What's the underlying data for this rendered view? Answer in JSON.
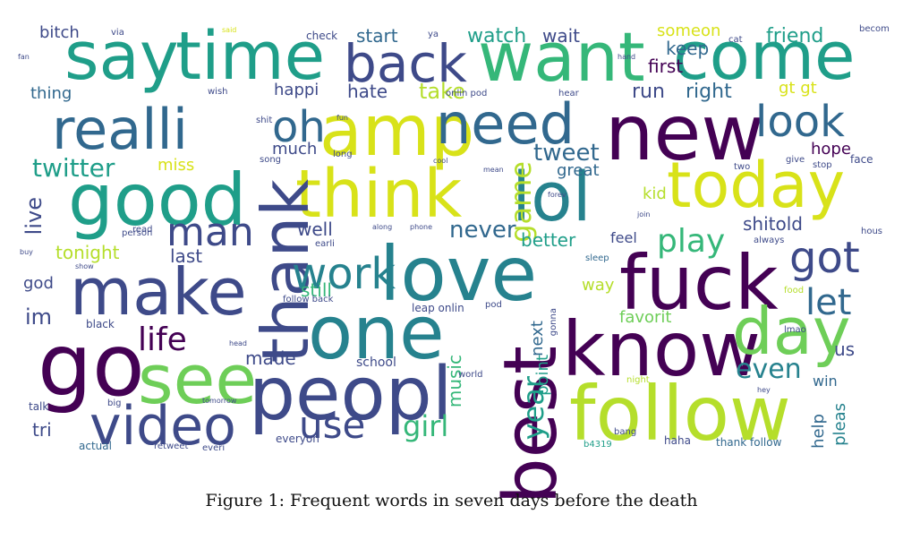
{
  "figure": {
    "caption": "Figure 1: Frequent words in seven days before the death"
  },
  "palette": {
    "purple": "#440154",
    "indigo": "#3e4a89",
    "blue": "#31688e",
    "teal": "#26828e",
    "sea": "#1f9e89",
    "green": "#35b779",
    "lime": "#6ece58",
    "yellow": "#b5de2b",
    "gold": "#d8e219"
  },
  "words": [
    {
      "text": "say",
      "color": "#1f9e89"
    },
    {
      "text": "time",
      "color": "#1f9e89"
    },
    {
      "text": "back",
      "color": "#3e4a89"
    },
    {
      "text": "want",
      "color": "#35b779"
    },
    {
      "text": "come",
      "color": "#1f9e89"
    },
    {
      "text": "realli",
      "color": "#31688e"
    },
    {
      "text": "oh",
      "color": "#31688e"
    },
    {
      "text": "amp",
      "color": "#d8e219"
    },
    {
      "text": "need",
      "color": "#31688e"
    },
    {
      "text": "new",
      "color": "#440154"
    },
    {
      "text": "look",
      "color": "#31688e"
    },
    {
      "text": "good",
      "color": "#1f9e89"
    },
    {
      "text": "think",
      "color": "#d8e219"
    },
    {
      "text": "lol",
      "color": "#26828e"
    },
    {
      "text": "today",
      "color": "#d8e219"
    },
    {
      "text": "thank",
      "color": "#3e4a89"
    },
    {
      "text": "love",
      "color": "#26828e"
    },
    {
      "text": "fuck",
      "color": "#440154"
    },
    {
      "text": "make",
      "color": "#3e4a89"
    },
    {
      "text": "one",
      "color": "#26828e"
    },
    {
      "text": "know",
      "color": "#440154"
    },
    {
      "text": "go",
      "color": "#440154"
    },
    {
      "text": "see",
      "color": "#6ece58"
    },
    {
      "text": "peopl",
      "color": "#3e4a89"
    },
    {
      "text": "best",
      "color": "#440154"
    },
    {
      "text": "day",
      "color": "#6ece58"
    },
    {
      "text": "follow",
      "color": "#b5de2b"
    },
    {
      "text": "video",
      "color": "#3e4a89"
    },
    {
      "text": "got",
      "color": "#3e4a89"
    },
    {
      "text": "work",
      "color": "#26828e"
    },
    {
      "text": "man",
      "color": "#3e4a89"
    },
    {
      "text": "life",
      "color": "#440154"
    },
    {
      "text": "use",
      "color": "#3e4a89"
    },
    {
      "text": "twitter",
      "color": "#1f9e89"
    },
    {
      "text": "play",
      "color": "#35b779"
    },
    {
      "text": "let",
      "color": "#31688e"
    },
    {
      "text": "even",
      "color": "#26828e"
    },
    {
      "text": "girl",
      "color": "#35b779"
    },
    {
      "text": "tweet",
      "color": "#31688e"
    },
    {
      "text": "game",
      "color": "#b5de2b"
    },
    {
      "text": "never",
      "color": "#31688e"
    },
    {
      "text": "year",
      "color": "#1f9e89"
    },
    {
      "text": "bitch",
      "color": "#3e4a89"
    },
    {
      "text": "start",
      "color": "#31688e"
    },
    {
      "text": "watch",
      "color": "#1f9e89"
    },
    {
      "text": "wait",
      "color": "#3e4a89"
    },
    {
      "text": "someon",
      "color": "#d8e219"
    },
    {
      "text": "friend",
      "color": "#1f9e89"
    },
    {
      "text": "keep",
      "color": "#31688e"
    },
    {
      "text": "first",
      "color": "#440154"
    },
    {
      "text": "thing",
      "color": "#31688e"
    },
    {
      "text": "happi",
      "color": "#3e4a89"
    },
    {
      "text": "hate",
      "color": "#3e4a89"
    },
    {
      "text": "take",
      "color": "#b5de2b"
    },
    {
      "text": "run",
      "color": "#3e4a89"
    },
    {
      "text": "right",
      "color": "#31688e"
    },
    {
      "text": "gt gt",
      "color": "#d8e219"
    },
    {
      "text": "much",
      "color": "#3e4a89"
    },
    {
      "text": "miss",
      "color": "#d8e219"
    },
    {
      "text": "hope",
      "color": "#440154"
    },
    {
      "text": "great",
      "color": "#31688e"
    },
    {
      "text": "kid",
      "color": "#b5de2b"
    },
    {
      "text": "live",
      "color": "#3e4a89"
    },
    {
      "text": "shitold",
      "color": "#3e4a89"
    },
    {
      "text": "well",
      "color": "#3e4a89"
    },
    {
      "text": "better",
      "color": "#1f9e89"
    },
    {
      "text": "feel",
      "color": "#3e4a89"
    },
    {
      "text": "tonight",
      "color": "#b5de2b"
    },
    {
      "text": "last",
      "color": "#3e4a89"
    },
    {
      "text": "still",
      "color": "#35b779"
    },
    {
      "text": "way",
      "color": "#b5de2b"
    },
    {
      "text": "god",
      "color": "#3e4a89"
    },
    {
      "text": "im",
      "color": "#3e4a89"
    },
    {
      "text": "favorit",
      "color": "#6ece58"
    },
    {
      "text": "next",
      "color": "#31688e"
    },
    {
      "text": "point",
      "color": "#1f9e89"
    },
    {
      "text": "music",
      "color": "#35b779"
    },
    {
      "text": "made",
      "color": "#3e4a89"
    },
    {
      "text": "school",
      "color": "#3e4a89"
    },
    {
      "text": "us",
      "color": "#3e4a89"
    },
    {
      "text": "win",
      "color": "#31688e"
    },
    {
      "text": "help",
      "color": "#31688e"
    },
    {
      "text": "pleas",
      "color": "#26828e"
    },
    {
      "text": "tri",
      "color": "#3e4a89"
    },
    {
      "text": "talk",
      "color": "#3e4a89"
    },
    {
      "text": "actual",
      "color": "#31688e"
    },
    {
      "text": "everyon",
      "color": "#3e4a89"
    },
    {
      "text": "haha",
      "color": "#3e4a89"
    },
    {
      "text": "thank follow",
      "color": "#31688e"
    },
    {
      "text": "b4319",
      "color": "#1f9e89"
    },
    {
      "text": "night",
      "color": "#b5de2b"
    },
    {
      "text": "black",
      "color": "#3e4a89"
    },
    {
      "text": "leap onlin",
      "color": "#3e4a89"
    },
    {
      "text": "pod",
      "color": "#3e4a89"
    },
    {
      "text": "face",
      "color": "#3e4a89"
    },
    {
      "text": "always",
      "color": "#3e4a89"
    },
    {
      "text": "sleep",
      "color": "#31688e"
    },
    {
      "text": "check",
      "color": "#3e4a89"
    },
    {
      "text": "ya",
      "color": "#3e4a89"
    },
    {
      "text": "cat",
      "color": "#3e4a89"
    },
    {
      "text": "via",
      "color": "#3e4a89"
    },
    {
      "text": "said",
      "color": "#d8e219"
    },
    {
      "text": "wish",
      "color": "#3e4a89"
    },
    {
      "text": "song",
      "color": "#3e4a89"
    },
    {
      "text": "long",
      "color": "#3e4a89"
    },
    {
      "text": "two",
      "color": "#3e4a89"
    },
    {
      "text": "read",
      "color": "#3e4a89"
    },
    {
      "text": "earli",
      "color": "#3e4a89"
    },
    {
      "text": "follow back",
      "color": "#3e4a89"
    },
    {
      "text": "tomorrow",
      "color": "#3e4a89"
    },
    {
      "text": "big",
      "color": "#3e4a89"
    },
    {
      "text": "head",
      "color": "#3e4a89"
    },
    {
      "text": "retweet",
      "color": "#3e4a89"
    },
    {
      "text": "everi",
      "color": "#3e4a89"
    },
    {
      "text": "becom",
      "color": "#3e4a89"
    },
    {
      "text": "give",
      "color": "#3e4a89"
    },
    {
      "text": "food",
      "color": "#b5de2b"
    },
    {
      "text": "gonna",
      "color": "#3e4a89"
    },
    {
      "text": "stop",
      "color": "#3e4a89"
    },
    {
      "text": "onlin pod",
      "color": "#3e4a89"
    },
    {
      "text": "person",
      "color": "#3e4a89"
    },
    {
      "text": "bang",
      "color": "#3e4a89"
    },
    {
      "text": "hous",
      "color": "#3e4a89"
    },
    {
      "text": "hear",
      "color": "#3e4a89"
    },
    {
      "text": "lmao",
      "color": "#3e4a89"
    },
    {
      "text": "shit",
      "color": "#3e4a89"
    },
    {
      "text": "world",
      "color": "#3e4a89"
    },
    {
      "text": "buy",
      "color": "#3e4a89"
    },
    {
      "text": "show",
      "color": "#3e4a89"
    },
    {
      "text": "hand",
      "color": "#3e4a89"
    },
    {
      "text": "forev",
      "color": "#3e4a89"
    },
    {
      "text": "hey",
      "color": "#3e4a89"
    },
    {
      "text": "fun",
      "color": "#3e4a89"
    },
    {
      "text": "cool",
      "color": "#3e4a89"
    },
    {
      "text": "mean",
      "color": "#3e4a89"
    },
    {
      "text": "along",
      "color": "#3e4a89"
    },
    {
      "text": "phone",
      "color": "#3e4a89"
    },
    {
      "text": "join",
      "color": "#3e4a89"
    },
    {
      "text": "fan",
      "color": "#3e4a89"
    }
  ]
}
